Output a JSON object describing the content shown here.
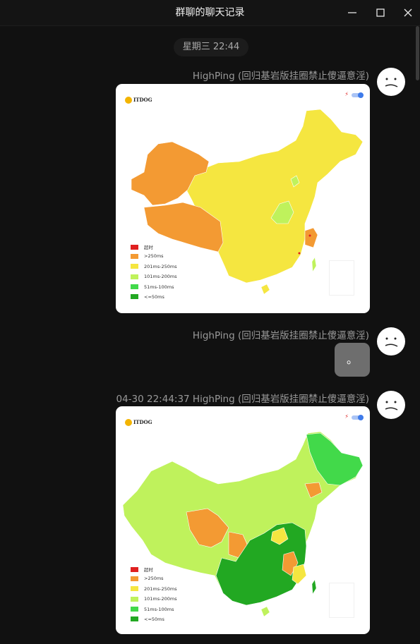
{
  "window": {
    "title": "群聊的聊天记录",
    "buttons": {
      "minimize": "minimize-icon",
      "maximize": "maximize-icon",
      "close": "close-icon"
    }
  },
  "time_divider": "星期三 22:44",
  "legend_labels": [
    "超时",
    ">250ms",
    "201ms-250ms",
    "101ms-200ms",
    "51ms-100ms",
    "<=50ms"
  ],
  "legend_colors": [
    "#e02020",
    "#f39a33",
    "#f5e640",
    "#bff25c",
    "#42d94a",
    "#22a822"
  ],
  "map_logo_text": "ITDOG",
  "messages": [
    {
      "sender": "HighPing (回归基岩版挂圈禁止傻逼意淫)",
      "type": "image",
      "content": "ping-latency-map"
    },
    {
      "sender": "HighPing (回归基岩版挂圈禁止傻逼意淫)",
      "type": "text",
      "content": "。"
    },
    {
      "sender": "04-30 22:44:37 HighPing (回归基岩版挂圈禁止傻逼意淫)",
      "type": "image",
      "content": "ping-latency-map"
    }
  ]
}
